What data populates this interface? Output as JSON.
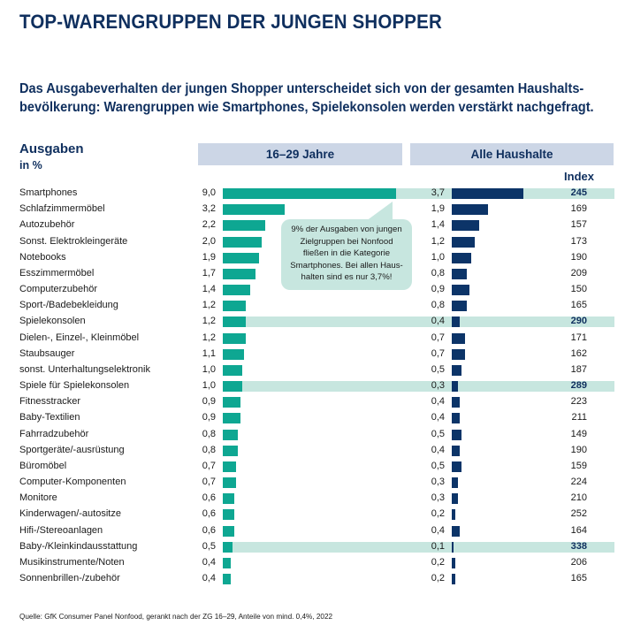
{
  "title": "TOP-WARENGRUPPEN DER JUNGEN SHOPPER",
  "subtitle": [
    "Das Ausgabeverhalten der jungen Shopper unterscheidet sich von der gesamten Haushalts-",
    "bevölkerung: Warengruppen wie Smartphones, Spielekonsolen werden verstärkt nachgefragt."
  ],
  "colors": {
    "young_bar": "#0ea792",
    "all_bar": "#0c3468",
    "highlight": "#c7e6df",
    "header_box": "#ccd6e6",
    "title": "#0f2f5e"
  },
  "callout": [
    "9% der Ausgaben von jungen",
    "Zielgruppen bei Nonfood",
    "fließen in die Kategorie",
    "Smartphones. Bei allen Haus-",
    "halten sind es nur 3,7%!"
  ],
  "source": "Quelle: GfK Consumer Panel Nonfood, gerankt nach der ZG 16–29, Anteile von mind. 0,4%, 2022",
  "chart_data": {
    "type": "bar",
    "orientation": "horizontal",
    "title": "TOP-WARENGRUPPEN DER JUNGEN SHOPPER",
    "ylabel": "Ausgaben",
    "yunit": "in %",
    "series_headers": [
      "16–29 Jahre",
      "Alle Haushalte"
    ],
    "index_header": "Index",
    "categories": [
      "Smartphones",
      "Schlafzimmermöbel",
      "Autozubehör",
      "Sonst. Elektrokleingeräte",
      "Notebooks",
      "Esszimmermöbel",
      "Computerzubehör",
      "Sport-/Badebekleidung",
      "Spielekonsolen",
      "Dielen-, Einzel-, Kleinmöbel",
      "Staubsauger",
      "sonst. Unterhaltungselektronik",
      "Spiele für Spielekonsolen",
      "Fitnesstracker",
      "Baby-Textilien",
      "Fahrradzubehör",
      "Sportgeräte/-ausrüstung",
      "Büromöbel",
      "Computer-Komponenten",
      "Monitore",
      "Kinderwagen/-autositze",
      "Hifi-/Stereoanlagen",
      "Baby-/Kleinkindausstattung",
      "Musikinstrumente/Noten",
      "Sonnenbrillen-/zubehör"
    ],
    "series": [
      {
        "name": "16–29 Jahre",
        "labels": [
          "9,0",
          "3,2",
          "2,2",
          "2,0",
          "1,9",
          "1,7",
          "1,4",
          "1,2",
          "1,2",
          "1,2",
          "1,1",
          "1,0",
          "1,0",
          "0,9",
          "0,9",
          "0,8",
          "0,8",
          "0,7",
          "0,7",
          "0,6",
          "0,6",
          "0,6",
          "0,5",
          "0,4",
          "0,4"
        ],
        "values": [
          9.0,
          3.2,
          2.2,
          2.0,
          1.9,
          1.7,
          1.4,
          1.2,
          1.2,
          1.2,
          1.1,
          1.0,
          1.0,
          0.9,
          0.9,
          0.8,
          0.8,
          0.7,
          0.7,
          0.6,
          0.6,
          0.6,
          0.5,
          0.4,
          0.4
        ]
      },
      {
        "name": "Alle Haushalte",
        "labels": [
          "3,7",
          "1,9",
          "1,4",
          "1,2",
          "1,0",
          "0,8",
          "0,9",
          "0,8",
          "0,4",
          "0,7",
          "0,7",
          "0,5",
          "0,3",
          "0,4",
          "0,4",
          "0,5",
          "0,4",
          "0,5",
          "0,3",
          "0,3",
          "0,2",
          "0,4",
          "0,1",
          "0,2",
          "0,2"
        ],
        "values": [
          3.7,
          1.9,
          1.4,
          1.2,
          1.0,
          0.8,
          0.9,
          0.8,
          0.4,
          0.7,
          0.7,
          0.5,
          0.3,
          0.4,
          0.4,
          0.5,
          0.4,
          0.5,
          0.3,
          0.3,
          0.2,
          0.4,
          0.1,
          0.2,
          0.2
        ]
      }
    ],
    "index": [
      245,
      169,
      157,
      173,
      190,
      209,
      150,
      165,
      290,
      171,
      162,
      187,
      289,
      223,
      211,
      149,
      190,
      159,
      224,
      210,
      252,
      164,
      338,
      206,
      165
    ],
    "highlighted": [
      "Smartphones",
      "Spielekonsolen",
      "Spiele für Spielekonsolen",
      "Baby-/Kleinkindausstattung"
    ],
    "xlim": [
      0,
      9.0
    ]
  }
}
